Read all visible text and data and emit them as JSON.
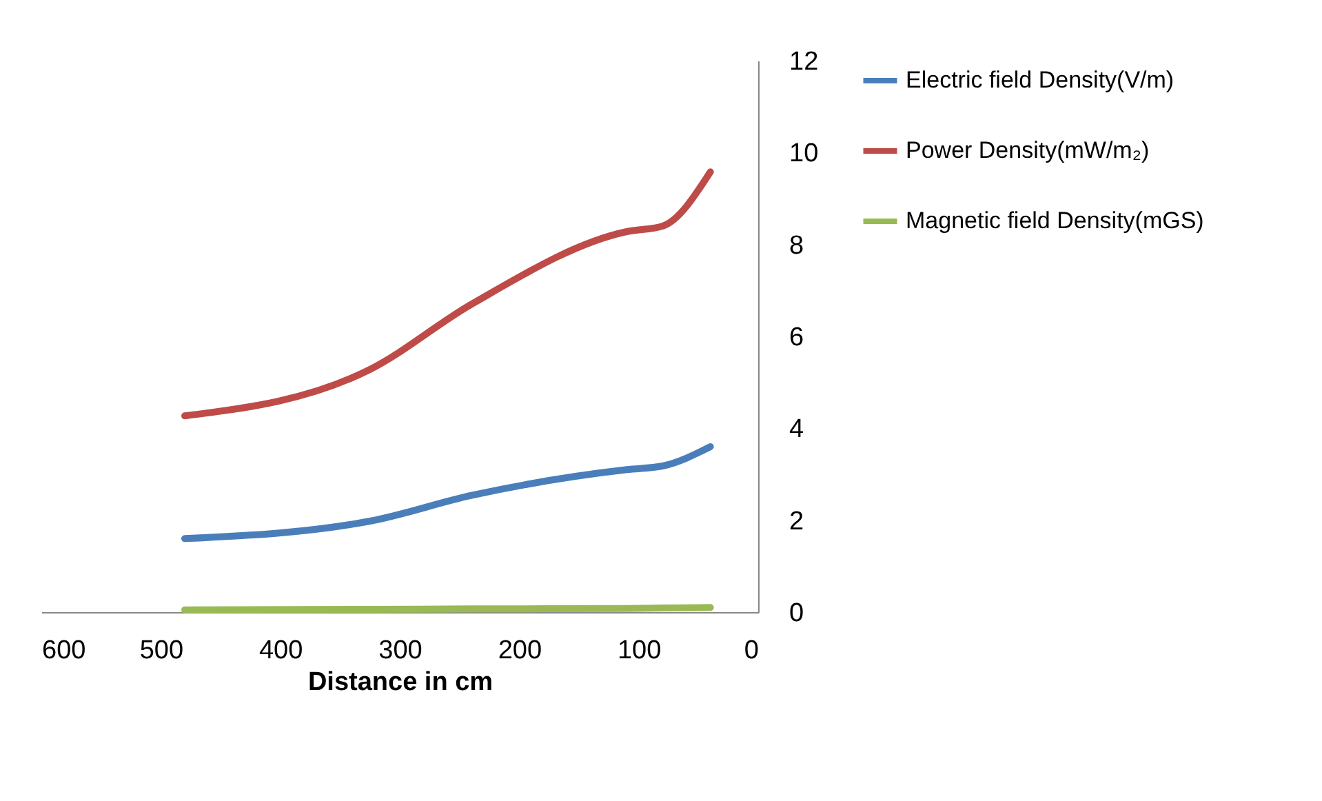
{
  "chart_data": {
    "type": "line",
    "xlabel": "Distance in cm",
    "x": [
      480,
      325,
      240,
      110,
      80,
      40
    ],
    "series": [
      {
        "name": "Electric field Density(V/m)",
        "color": "#4a7ebb",
        "values": [
          1.6,
          1.98,
          2.54,
          3.1,
          3.18,
          3.6
        ]
      },
      {
        "name": "Power Density(mW/m₂)",
        "color": "#be4b48",
        "values": [
          4.27,
          5.28,
          6.7,
          8.28,
          8.4,
          9.58
        ]
      },
      {
        "name": "Magnetic field Density(mGS)",
        "color": "#98b954",
        "values": [
          0.05,
          0.06,
          0.07,
          0.08,
          0.09,
          0.1
        ]
      }
    ],
    "xlim": [
      600,
      0
    ],
    "xticks": [
      600,
      500,
      400,
      300,
      200,
      100,
      0
    ],
    "ylim": [
      0,
      12
    ],
    "yticks": [
      0,
      2,
      4,
      6,
      8,
      10,
      12
    ],
    "grid": false,
    "legend": "right",
    "marker": "none",
    "line_style": "solid"
  }
}
